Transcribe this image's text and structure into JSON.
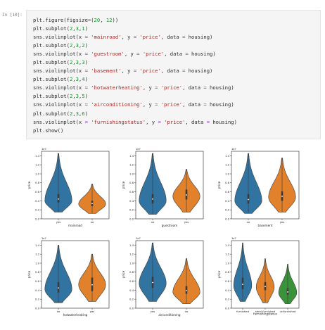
{
  "cell": {
    "prompt": "In [10]:",
    "code_lines": [
      [
        {
          "t": "plt.figure(figsize",
          "c": "var"
        },
        {
          "t": "=",
          "c": "op"
        },
        {
          "t": "(",
          "c": "var"
        },
        {
          "t": "20",
          "c": "num"
        },
        {
          "t": ", ",
          "c": "var"
        },
        {
          "t": "12",
          "c": "num"
        },
        {
          "t": "))",
          "c": "var"
        }
      ],
      [
        {
          "t": "plt.subplot(",
          "c": "var"
        },
        {
          "t": "2",
          "c": "num"
        },
        {
          "t": ",",
          "c": "var"
        },
        {
          "t": "3",
          "c": "num"
        },
        {
          "t": ",",
          "c": "var"
        },
        {
          "t": "1",
          "c": "num"
        },
        {
          "t": ")",
          "c": "var"
        }
      ],
      [
        {
          "t": "sns.violinplot(x ",
          "c": "var"
        },
        {
          "t": "=",
          "c": "op"
        },
        {
          "t": " ",
          "c": "var"
        },
        {
          "t": "'mainroad'",
          "c": "str"
        },
        {
          "t": ", y ",
          "c": "var"
        },
        {
          "t": "=",
          "c": "op"
        },
        {
          "t": " ",
          "c": "var"
        },
        {
          "t": "'price'",
          "c": "str"
        },
        {
          "t": ", data ",
          "c": "var"
        },
        {
          "t": "=",
          "c": "op"
        },
        {
          "t": " housing)",
          "c": "var"
        }
      ],
      [
        {
          "t": "plt.subplot(",
          "c": "var"
        },
        {
          "t": "2",
          "c": "num"
        },
        {
          "t": ",",
          "c": "var"
        },
        {
          "t": "3",
          "c": "num"
        },
        {
          "t": ",",
          "c": "var"
        },
        {
          "t": "2",
          "c": "num"
        },
        {
          "t": ")",
          "c": "var"
        }
      ],
      [
        {
          "t": "sns.violinplot(x ",
          "c": "var"
        },
        {
          "t": "=",
          "c": "op"
        },
        {
          "t": " ",
          "c": "var"
        },
        {
          "t": "'guestroom'",
          "c": "str"
        },
        {
          "t": ", y ",
          "c": "var"
        },
        {
          "t": "=",
          "c": "op"
        },
        {
          "t": " ",
          "c": "var"
        },
        {
          "t": "'price'",
          "c": "str"
        },
        {
          "t": ", data ",
          "c": "var"
        },
        {
          "t": "=",
          "c": "op"
        },
        {
          "t": " housing)",
          "c": "var"
        }
      ],
      [
        {
          "t": "plt.subplot(",
          "c": "var"
        },
        {
          "t": "2",
          "c": "num"
        },
        {
          "t": ",",
          "c": "var"
        },
        {
          "t": "3",
          "c": "num"
        },
        {
          "t": ",",
          "c": "var"
        },
        {
          "t": "3",
          "c": "num"
        },
        {
          "t": ")",
          "c": "var"
        }
      ],
      [
        {
          "t": "sns.violinplot(x ",
          "c": "var"
        },
        {
          "t": "=",
          "c": "op"
        },
        {
          "t": " ",
          "c": "var"
        },
        {
          "t": "'basement'",
          "c": "str"
        },
        {
          "t": ", y ",
          "c": "var"
        },
        {
          "t": "=",
          "c": "op"
        },
        {
          "t": " ",
          "c": "var"
        },
        {
          "t": "'price'",
          "c": "str"
        },
        {
          "t": ", data ",
          "c": "var"
        },
        {
          "t": "=",
          "c": "op"
        },
        {
          "t": " housing)",
          "c": "var"
        }
      ],
      [
        {
          "t": "plt.subplot(",
          "c": "var"
        },
        {
          "t": "2",
          "c": "num"
        },
        {
          "t": ",",
          "c": "var"
        },
        {
          "t": "3",
          "c": "num"
        },
        {
          "t": ",",
          "c": "var"
        },
        {
          "t": "4",
          "c": "num"
        },
        {
          "t": ")",
          "c": "var"
        }
      ],
      [
        {
          "t": "sns.violinplot(x ",
          "c": "var"
        },
        {
          "t": "=",
          "c": "op"
        },
        {
          "t": " ",
          "c": "var"
        },
        {
          "t": "'hotwaterheating'",
          "c": "str"
        },
        {
          "t": ", y ",
          "c": "var"
        },
        {
          "t": "=",
          "c": "op"
        },
        {
          "t": " ",
          "c": "var"
        },
        {
          "t": "'price'",
          "c": "str"
        },
        {
          "t": ", data ",
          "c": "var"
        },
        {
          "t": "=",
          "c": "op"
        },
        {
          "t": " housing)",
          "c": "var"
        }
      ],
      [
        {
          "t": "plt.subplot(",
          "c": "var"
        },
        {
          "t": "2",
          "c": "num"
        },
        {
          "t": ",",
          "c": "var"
        },
        {
          "t": "3",
          "c": "num"
        },
        {
          "t": ",",
          "c": "var"
        },
        {
          "t": "5",
          "c": "num"
        },
        {
          "t": ")",
          "c": "var"
        }
      ],
      [
        {
          "t": "sns.violinplot(x ",
          "c": "var"
        },
        {
          "t": "=",
          "c": "op"
        },
        {
          "t": " ",
          "c": "var"
        },
        {
          "t": "'airconditioning'",
          "c": "str"
        },
        {
          "t": ", y ",
          "c": "var"
        },
        {
          "t": "=",
          "c": "op"
        },
        {
          "t": " ",
          "c": "var"
        },
        {
          "t": "'price'",
          "c": "str"
        },
        {
          "t": ", data ",
          "c": "var"
        },
        {
          "t": "=",
          "c": "op"
        },
        {
          "t": " housing)",
          "c": "var"
        }
      ],
      [
        {
          "t": "plt.subplot(",
          "c": "var"
        },
        {
          "t": "2",
          "c": "num"
        },
        {
          "t": ",",
          "c": "var"
        },
        {
          "t": "3",
          "c": "num"
        },
        {
          "t": ",",
          "c": "var"
        },
        {
          "t": "6",
          "c": "num"
        },
        {
          "t": ")",
          "c": "var"
        }
      ],
      [
        {
          "t": "sns.violinplot(x ",
          "c": "var"
        },
        {
          "t": "=",
          "c": "op"
        },
        {
          "t": " ",
          "c": "var"
        },
        {
          "t": "'furnishingstatus'",
          "c": "str"
        },
        {
          "t": ", y ",
          "c": "var"
        },
        {
          "t": "=",
          "c": "op"
        },
        {
          "t": " ",
          "c": "var"
        },
        {
          "t": "'price'",
          "c": "str"
        },
        {
          "t": ", data ",
          "c": "var"
        },
        {
          "t": "=",
          "c": "op"
        },
        {
          "t": " housing)",
          "c": "var"
        }
      ],
      [
        {
          "t": "plt.show()",
          "c": "var"
        }
      ]
    ]
  },
  "colors": {
    "blue": "#3274a1",
    "orange": "#e1812c",
    "green": "#3a923a",
    "edge": "#3d3d3d"
  },
  "chart_data": [
    {
      "type": "violin",
      "xlabel": "mainroad",
      "ylabel": "price",
      "offset_text": "1e7",
      "ylim": [
        0,
        1.5
      ],
      "yticks": [
        "0.0",
        "0.2",
        "0.4",
        "0.6",
        "0.8",
        "1.0",
        "1.2",
        "1.4"
      ],
      "categories": [
        "yes",
        "no"
      ],
      "series": [
        {
          "name": "yes",
          "color": "blue",
          "min": 0.15,
          "q1": 0.36,
          "median": 0.44,
          "q3": 0.55,
          "max": 1.45,
          "peak": 0.4,
          "spread": 0.5
        },
        {
          "name": "no",
          "color": "orange",
          "min": 0.12,
          "q1": 0.28,
          "median": 0.34,
          "q3": 0.4,
          "max": 0.77,
          "peak": 0.33,
          "spread": 0.42
        }
      ]
    },
    {
      "type": "violin",
      "xlabel": "guestroom",
      "ylabel": "price",
      "offset_text": "1e7",
      "ylim": [
        0,
        1.5
      ],
      "yticks": [
        "0.0",
        "0.2",
        "0.4",
        "0.6",
        "0.8",
        "1.0",
        "1.2",
        "1.4"
      ],
      "categories": [
        "no",
        "yes"
      ],
      "series": [
        {
          "name": "no",
          "color": "blue",
          "min": 0.1,
          "q1": 0.34,
          "median": 0.44,
          "q3": 0.55,
          "max": 1.45,
          "peak": 0.4,
          "spread": 0.5
        },
        {
          "name": "yes",
          "color": "orange",
          "min": 0.15,
          "q1": 0.43,
          "median": 0.53,
          "q3": 0.65,
          "max": 1.1,
          "peak": 0.5,
          "spread": 0.48
        }
      ]
    },
    {
      "type": "violin",
      "xlabel": "basement",
      "ylabel": "price",
      "offset_text": "1e7",
      "ylim": [
        0,
        1.5
      ],
      "yticks": [
        "0.0",
        "0.2",
        "0.4",
        "0.6",
        "0.8",
        "1.0",
        "1.2",
        "1.4"
      ],
      "categories": [
        "no",
        "yes"
      ],
      "series": [
        {
          "name": "no",
          "color": "blue",
          "min": 0.12,
          "q1": 0.34,
          "median": 0.43,
          "q3": 0.55,
          "max": 1.45,
          "peak": 0.4,
          "spread": 0.5
        },
        {
          "name": "yes",
          "color": "orange",
          "min": 0.15,
          "q1": 0.4,
          "median": 0.5,
          "q3": 0.61,
          "max": 1.35,
          "peak": 0.48,
          "spread": 0.48
        }
      ]
    },
    {
      "type": "violin",
      "xlabel": "hotwaterheating",
      "ylabel": "price",
      "offset_text": "1e7",
      "ylim": [
        0,
        1.5
      ],
      "yticks": [
        "0.0",
        "0.2",
        "0.4",
        "0.6",
        "0.8",
        "1.0",
        "1.2",
        "1.4"
      ],
      "categories": [
        "no",
        "yes"
      ],
      "series": [
        {
          "name": "no",
          "color": "blue",
          "min": 0.12,
          "q1": 0.35,
          "median": 0.45,
          "q3": 0.58,
          "max": 1.4,
          "peak": 0.42,
          "spread": 0.5
        },
        {
          "name": "yes",
          "color": "orange",
          "min": 0.15,
          "q1": 0.38,
          "median": 0.52,
          "q3": 0.68,
          "max": 1.2,
          "peak": 0.52,
          "spread": 0.4
        }
      ]
    },
    {
      "type": "violin",
      "xlabel": "airconditioning",
      "ylabel": "price",
      "offset_text": "1e7",
      "ylim": [
        0,
        1.5
      ],
      "yticks": [
        "0.0",
        "0.2",
        "0.4",
        "0.6",
        "0.8",
        "1.0",
        "1.2",
        "1.4"
      ],
      "categories": [
        "yes",
        "no"
      ],
      "series": [
        {
          "name": "yes",
          "color": "blue",
          "min": 0.15,
          "q1": 0.45,
          "median": 0.57,
          "q3": 0.7,
          "max": 1.45,
          "peak": 0.55,
          "spread": 0.45
        },
        {
          "name": "no",
          "color": "orange",
          "min": 0.1,
          "q1": 0.32,
          "median": 0.39,
          "q3": 0.49,
          "max": 1.1,
          "peak": 0.36,
          "spread": 0.48
        }
      ]
    },
    {
      "type": "violin",
      "xlabel": "furnishingstatus",
      "ylabel": "price",
      "offset_text": "1e7",
      "ylim": [
        0,
        1.5
      ],
      "yticks": [
        "0.0",
        "0.2",
        "0.4",
        "0.6",
        "0.8",
        "1.0",
        "1.2",
        "1.4"
      ],
      "categories": [
        "furnished",
        "semi-furnished",
        "unfurnished"
      ],
      "series": [
        {
          "name": "furnished",
          "color": "blue",
          "min": 0.15,
          "q1": 0.42,
          "median": 0.53,
          "q3": 0.68,
          "max": 1.45,
          "peak": 0.5,
          "spread": 0.45
        },
        {
          "name": "semi-furnished",
          "color": "orange",
          "min": 0.12,
          "q1": 0.4,
          "median": 0.48,
          "q3": 0.58,
          "max": 1.1,
          "peak": 0.47,
          "spread": 0.4
        },
        {
          "name": "unfurnished",
          "color": "green",
          "min": 0.1,
          "q1": 0.3,
          "median": 0.36,
          "q3": 0.44,
          "max": 0.98,
          "peak": 0.34,
          "spread": 0.4
        }
      ]
    }
  ]
}
